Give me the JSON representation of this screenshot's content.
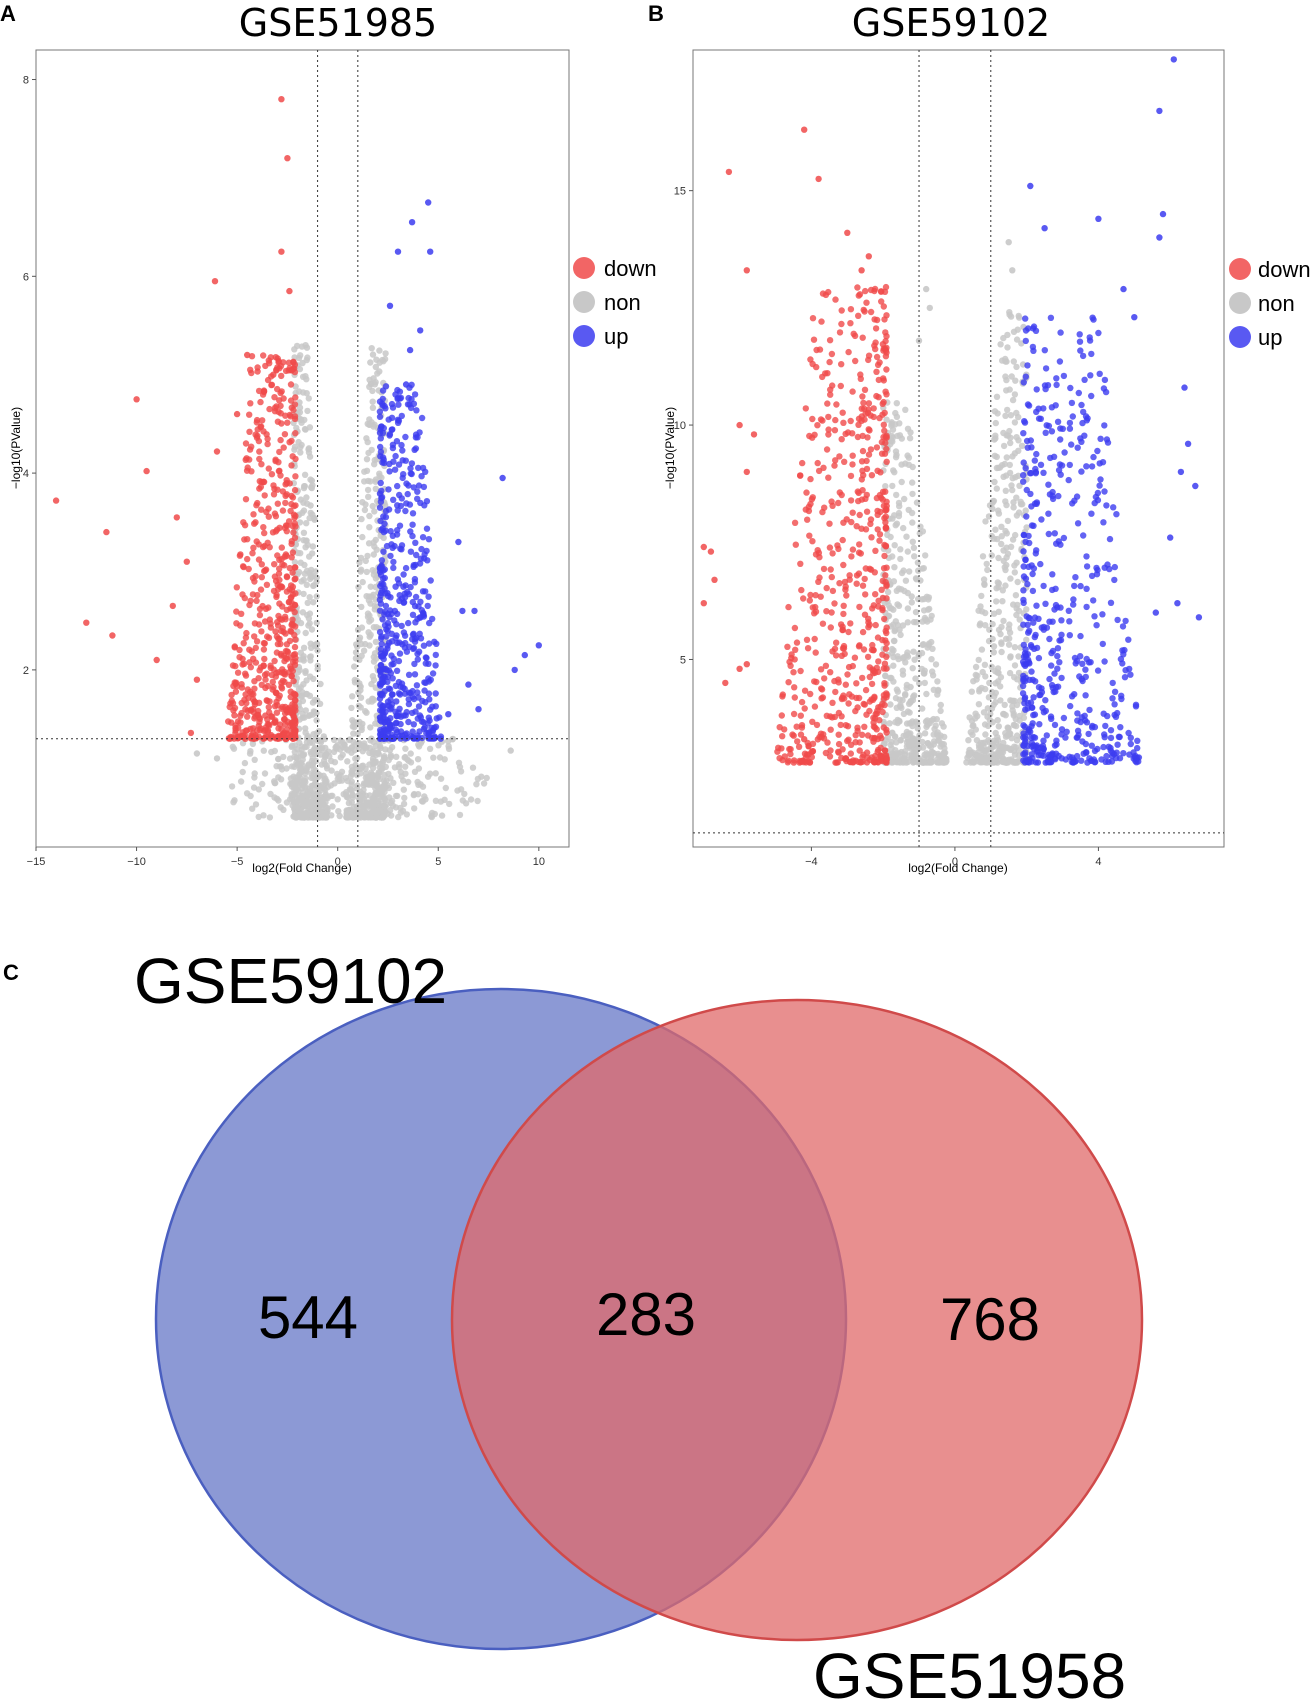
{
  "panels": {
    "a_letter": "A",
    "b_letter": "B",
    "c_letter": "C"
  },
  "colors": {
    "down": "#f04a4a",
    "non": "#c8c8c8",
    "up": "#3c3cf0",
    "venn_left": "#6f80ca",
    "venn_right": "#e06a6a",
    "venn_overlap": "#ab5875"
  },
  "chart_data": [
    {
      "id": "volcano-a",
      "type": "scatter",
      "title": "GSE51985",
      "xlabel": "log2(Fold Change)",
      "ylabel": "−log10(PValue)",
      "xlim": [
        -15,
        11.5
      ],
      "ylim": [
        0.2,
        8.3
      ],
      "xticks": [
        -15,
        -10,
        -5,
        0,
        5,
        10
      ],
      "xtick_labels": [
        "−15",
        "−10",
        "−5",
        "0",
        "5",
        "10"
      ],
      "yticks": [
        2,
        4,
        6,
        8
      ],
      "ytick_labels": [
        "2",
        "4",
        "6",
        "8"
      ],
      "fc_threshold": [
        -1,
        1
      ],
      "p_threshold": 1.3,
      "legend": {
        "position": "right",
        "entries": [
          "down",
          "non",
          "up"
        ]
      },
      "down_points": [
        [
          -2.8,
          7.8
        ],
        [
          -2.5,
          7.2
        ],
        [
          -2.8,
          6.25
        ],
        [
          -6.1,
          5.95
        ],
        [
          -2.4,
          5.85
        ],
        [
          -10.0,
          4.75
        ],
        [
          -14.0,
          3.72
        ],
        [
          -11.5,
          3.4
        ],
        [
          -12.5,
          2.48
        ],
        [
          -9.5,
          4.02
        ],
        [
          -6.0,
          4.22
        ],
        [
          -11.2,
          2.35
        ],
        [
          -9.0,
          2.1
        ],
        [
          -7.5,
          3.1
        ],
        [
          -8.0,
          3.55
        ],
        [
          -8.2,
          2.65
        ],
        [
          -7.0,
          1.9
        ],
        [
          -7.3,
          1.36
        ],
        [
          -4.5,
          5.2
        ],
        [
          -3.2,
          5.0
        ],
        [
          -5.0,
          4.6
        ]
      ],
      "up_points": [
        [
          4.5,
          6.75
        ],
        [
          3.7,
          6.55
        ],
        [
          3.0,
          6.25
        ],
        [
          4.6,
          6.25
        ],
        [
          2.6,
          5.7
        ],
        [
          4.1,
          5.45
        ],
        [
          3.6,
          5.25
        ],
        [
          3.4,
          4.9
        ],
        [
          8.2,
          3.95
        ],
        [
          10.0,
          2.25
        ],
        [
          9.3,
          2.15
        ],
        [
          8.8,
          2.0
        ],
        [
          6.0,
          3.3
        ],
        [
          6.8,
          2.6
        ],
        [
          6.2,
          2.6
        ],
        [
          7.0,
          1.6
        ],
        [
          6.5,
          1.85
        ],
        [
          5.5,
          1.55
        ]
      ],
      "non_extra_points": [
        [
          8.6,
          1.18
        ],
        [
          -7.0,
          1.15
        ],
        [
          -6.0,
          1.1
        ]
      ],
      "dense_cloud": {
        "down_x": [
          -5.5,
          -2.1
        ],
        "down_y": [
          1.3,
          5.2
        ],
        "non_left_x": [
          -2.2,
          -0.5
        ],
        "non_left_y": [
          0.5,
          5.3
        ],
        "non_right_x": [
          0.4,
          2.4
        ],
        "non_right_y": [
          0.5,
          5.3
        ],
        "up_x": [
          2.1,
          5.2
        ],
        "up_y": [
          1.3,
          4.9
        ],
        "non_base_x": [
          -6,
          8
        ],
        "non_base_y": [
          0.5,
          1.3
        ]
      }
    },
    {
      "id": "volcano-b",
      "type": "scatter",
      "title": "GSE59102",
      "xlabel": "log2(Fold Change)",
      "ylabel": "−log10(PValue)",
      "xlim": [
        -7.3,
        7.5
      ],
      "ylim": [
        1.0,
        18.0
      ],
      "xticks": [
        -4,
        0,
        4
      ],
      "xtick_labels": [
        "−4",
        "0",
        "4"
      ],
      "yticks": [
        5,
        10,
        15
      ],
      "ytick_labels": [
        "5",
        "10",
        "15"
      ],
      "fc_threshold": [
        -1,
        1
      ],
      "p_threshold": 1.3,
      "legend": {
        "position": "right",
        "entries": [
          "down",
          "non",
          "up"
        ]
      },
      "down_points": [
        [
          -4.2,
          16.3
        ],
        [
          -6.3,
          15.4
        ],
        [
          -3.8,
          15.25
        ],
        [
          -5.8,
          13.3
        ],
        [
          -3.0,
          14.1
        ],
        [
          -2.4,
          13.6
        ],
        [
          -2.6,
          13.3
        ],
        [
          -6.8,
          7.3
        ],
        [
          -7.0,
          7.4
        ],
        [
          -6.7,
          6.7
        ],
        [
          -7.0,
          6.2
        ],
        [
          -6.0,
          4.8
        ],
        [
          -6.4,
          4.5
        ],
        [
          -5.8,
          4.9
        ],
        [
          -4.2,
          3.3
        ],
        [
          -6.0,
          10.0
        ],
        [
          -5.6,
          9.8
        ],
        [
          -5.8,
          9.0
        ]
      ],
      "up_points": [
        [
          6.1,
          17.8
        ],
        [
          5.7,
          16.7
        ],
        [
          5.8,
          14.5
        ],
        [
          5.7,
          14.0
        ],
        [
          4.0,
          14.4
        ],
        [
          2.5,
          14.2
        ],
        [
          2.1,
          15.1
        ],
        [
          6.4,
          10.8
        ],
        [
          6.5,
          9.6
        ],
        [
          6.3,
          9.0
        ],
        [
          6.7,
          8.7
        ],
        [
          6.0,
          7.6
        ],
        [
          6.2,
          6.2
        ],
        [
          5.6,
          6.0
        ],
        [
          6.8,
          5.9
        ],
        [
          3.3,
          2.8
        ],
        [
          5.0,
          12.3
        ],
        [
          4.7,
          12.9
        ]
      ],
      "non_extra_points": [
        [
          -0.8,
          12.9
        ],
        [
          -0.7,
          12.5
        ],
        [
          1.5,
          13.9
        ],
        [
          1.6,
          13.3
        ],
        [
          -1.0,
          11.8
        ]
      ],
      "dense_cloud": {
        "down_x": [
          -5.0,
          -1.9
        ],
        "down_y": [
          2.8,
          13.0
        ],
        "non_left_x": [
          -2.0,
          -0.2
        ],
        "non_left_y": [
          2.8,
          10.5
        ],
        "non_right_x": [
          0.3,
          2.0
        ],
        "non_right_y": [
          2.8,
          12.5
        ],
        "up_x": [
          1.9,
          5.2
        ],
        "up_y": [
          2.8,
          12.3
        ]
      }
    },
    {
      "id": "venn",
      "type": "venn",
      "sets": [
        {
          "name": "GSE59102",
          "count": 544
        },
        {
          "name": "GSE51958",
          "count": 768
        }
      ],
      "overlap_count": 283
    }
  ]
}
